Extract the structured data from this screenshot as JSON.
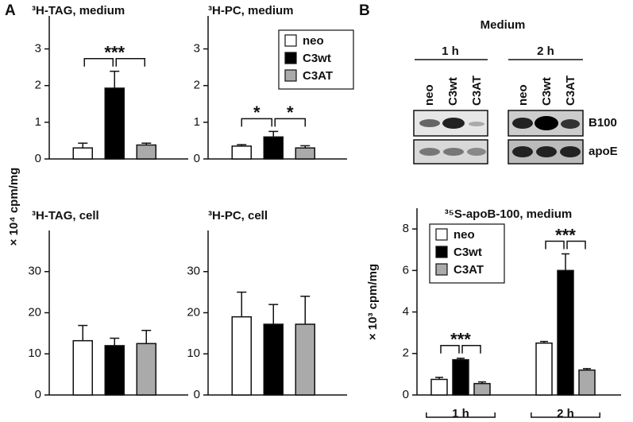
{
  "panel_labels": [
    "A",
    "B"
  ],
  "blot": {
    "title": "Medium",
    "timepoints": [
      "1 h",
      "2 h"
    ],
    "lanes": [
      "neo",
      "C3wt",
      "C3AT"
    ],
    "bands": [
      "B100",
      "apoE"
    ]
  },
  "chart_data": [
    {
      "type": "bar",
      "title": "³H-TAG, medium",
      "ylabel": "× 10⁴ cpm/mg",
      "ylim": [
        0,
        3.9
      ],
      "yticks": [
        0,
        1,
        2,
        3
      ],
      "series": [
        {
          "color": "#ffffff",
          "values": [
            0.3
          ],
          "errors": [
            0.13
          ]
        },
        {
          "color": "#000000",
          "values": [
            1.93
          ],
          "errors": [
            0.46
          ]
        },
        {
          "color": "#aaaaaa",
          "values": [
            0.38
          ],
          "errors": [
            0.05
          ]
        }
      ],
      "annotations": [
        "***"
      ]
    },
    {
      "type": "bar",
      "title": "³H-PC, medium",
      "ylim": [
        0,
        3.9
      ],
      "yticks": [
        0,
        1,
        2,
        3
      ],
      "legend": "upper right",
      "series": [
        {
          "name": "neo",
          "color": "#ffffff",
          "values": [
            0.35
          ],
          "errors": [
            0.04
          ]
        },
        {
          "name": "C3wt",
          "color": "#000000",
          "values": [
            0.6
          ],
          "errors": [
            0.15
          ]
        },
        {
          "name": "C3AT",
          "color": "#aaaaaa",
          "values": [
            0.3
          ],
          "errors": [
            0.06
          ]
        }
      ],
      "annotations": [
        "*",
        "*"
      ]
    },
    {
      "type": "bar",
      "title": "³H-TAG, cell",
      "ylim": [
        0,
        40
      ],
      "yticks": [
        0,
        10,
        20,
        30
      ],
      "series": [
        {
          "color": "#ffffff",
          "values": [
            13.2
          ],
          "errors": [
            3.7
          ]
        },
        {
          "color": "#000000",
          "values": [
            12
          ],
          "errors": [
            1.8
          ]
        },
        {
          "color": "#aaaaaa",
          "values": [
            12.5
          ],
          "errors": [
            3.2
          ]
        }
      ]
    },
    {
      "type": "bar",
      "title": "³H-PC, cell",
      "ylim": [
        0,
        40
      ],
      "yticks": [
        0,
        10,
        20,
        30
      ],
      "series": [
        {
          "color": "#ffffff",
          "values": [
            19
          ],
          "errors": [
            6
          ]
        },
        {
          "color": "#000000",
          "values": [
            17.2
          ],
          "errors": [
            4.8
          ]
        },
        {
          "color": "#aaaaaa",
          "values": [
            17.2
          ],
          "errors": [
            6.8
          ]
        }
      ]
    },
    {
      "type": "bar",
      "title": "³⁵S-apoB-100, medium",
      "ylabel": "× 10³ cpm/mg",
      "ylim": [
        0,
        9
      ],
      "yticks": [
        0,
        2,
        4,
        6,
        8
      ],
      "legend": "upper left",
      "categories": [
        "1 h",
        "2 h"
      ],
      "series": [
        {
          "name": "neo",
          "color": "#ffffff",
          "values": [
            0.75,
            2.5
          ],
          "errors": [
            0.1,
            0.08
          ]
        },
        {
          "name": "C3wt",
          "color": "#000000",
          "values": [
            1.7,
            6
          ],
          "errors": [
            0.07,
            0.8
          ]
        },
        {
          "name": "C3AT",
          "color": "#aaaaaa",
          "values": [
            0.55,
            1.2
          ],
          "errors": [
            0.08,
            0.07
          ]
        }
      ],
      "annotations": [
        "***",
        "***"
      ]
    }
  ]
}
